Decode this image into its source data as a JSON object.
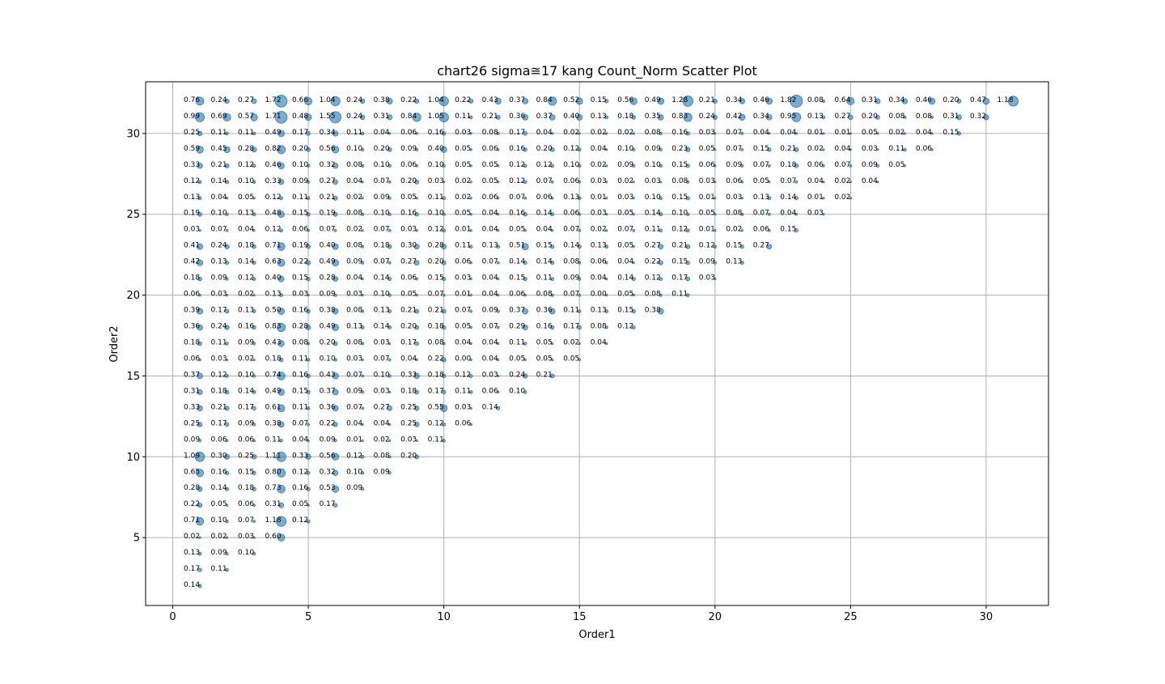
{
  "chart_data": {
    "type": "scatter",
    "title": "chart26 sigma≅17 kang Count_Norm Scatter Plot",
    "xlabel": "Order1",
    "ylabel": "Order2",
    "xlim": [
      -1,
      32.3
    ],
    "ylim": [
      0.8,
      33.2
    ],
    "xticks": [
      0,
      5,
      10,
      15,
      20,
      25,
      30
    ],
    "yticks": [
      5,
      10,
      15,
      20,
      25,
      30
    ],
    "grid": true,
    "color": "#1f77b4",
    "rows": [
      {
        "y": 32,
        "x_start": 1,
        "values": [
          "0.76",
          "0.24",
          "0.27",
          "1.72",
          "0.66",
          "1.04",
          "0.24",
          "0.38",
          "0.22",
          "1.04",
          "0.22",
          "0.43",
          "0.37",
          "0.84",
          "0.52",
          "0.15",
          "0.56",
          "0.49",
          "1.28",
          "0.21",
          "0.34",
          "0.46",
          "1.82",
          "0.08",
          "0.64",
          "0.31",
          "0.34",
          "0.46",
          "0.20",
          "0.47",
          "1.18"
        ]
      },
      {
        "y": 31,
        "x_start": 1,
        "values": [
          "0.99",
          "0.69",
          "0.57",
          "1.71",
          "0.48",
          "1.55",
          "0.24",
          "0.31",
          "0.84",
          "1.05",
          "0.11",
          "0.21",
          "0.36",
          "0.37",
          "0.40",
          "0.13",
          "0.18",
          "0.35",
          "0.83",
          "0.24",
          "0.42",
          "0.34",
          "0.95",
          "0.13",
          "0.27",
          "0.20",
          "0.08",
          "0.08",
          "0.31",
          "0.32"
        ]
      },
      {
        "y": 30,
        "x_start": 1,
        "values": [
          "0.25",
          "0.11",
          "0.11",
          "0.49",
          "0.17",
          "0.34",
          "0.11",
          "0.04",
          "0.06",
          "0.16",
          "0.03",
          "0.08",
          "0.17",
          "0.04",
          "0.02",
          "0.02",
          "0.02",
          "0.08",
          "0.16",
          "0.03",
          "0.07",
          "0.04",
          "0.04",
          "0.01",
          "0.01",
          "0.05",
          "0.02",
          "0.04",
          "0.15"
        ]
      },
      {
        "y": 29,
        "x_start": 1,
        "values": [
          "0.59",
          "0.45",
          "0.28",
          "0.82",
          "0.20",
          "0.56",
          "0.10",
          "0.20",
          "0.09",
          "0.40",
          "0.05",
          "0.06",
          "0.16",
          "0.20",
          "0.12",
          "0.04",
          "0.10",
          "0.09",
          "0.23",
          "0.05",
          "0.07",
          "0.15",
          "0.21",
          "0.02",
          "0.04",
          "0.03",
          "0.11",
          "0.06"
        ]
      },
      {
        "y": 28,
        "x_start": 1,
        "values": [
          "0.33",
          "0.21",
          "0.12",
          "0.46",
          "0.10",
          "0.32",
          "0.08",
          "0.10",
          "0.06",
          "0.10",
          "0.05",
          "0.05",
          "0.12",
          "0.12",
          "0.10",
          "0.02",
          "0.09",
          "0.10",
          "0.15",
          "0.06",
          "0.09",
          "0.07",
          "0.18",
          "0.06",
          "0.07",
          "0.09",
          "0.05"
        ]
      },
      {
        "y": 27,
        "x_start": 1,
        "values": [
          "0.12",
          "0.14",
          "0.10",
          "0.33",
          "0.09",
          "0.27",
          "0.04",
          "0.07",
          "0.20",
          "0.03",
          "0.02",
          "0.05",
          "0.12",
          "0.07",
          "0.06",
          "0.03",
          "0.02",
          "0.03",
          "0.08",
          "0.03",
          "0.06",
          "0.05",
          "0.07",
          "0.04",
          "0.02",
          "0.04"
        ]
      },
      {
        "y": 26,
        "x_start": 1,
        "values": [
          "0.13",
          "0.04",
          "0.05",
          "0.12",
          "0.11",
          "0.21",
          "0.02",
          "0.09",
          "0.05",
          "0.11",
          "0.02",
          "0.06",
          "0.07",
          "0.06",
          "0.13",
          "0.01",
          "0.03",
          "0.10",
          "0.15",
          "0.01",
          "0.03",
          "0.13",
          "0.14",
          "0.01",
          "0.02"
        ]
      },
      {
        "y": 25,
        "x_start": 1,
        "values": [
          "0.19",
          "0.10",
          "0.13",
          "0.48",
          "0.15",
          "0.19",
          "0.08",
          "0.10",
          "0.16",
          "0.10",
          "0.05",
          "0.04",
          "0.16",
          "0.14",
          "0.06",
          "0.03",
          "0.05",
          "0.14",
          "0.10",
          "0.05",
          "0.08",
          "0.07",
          "0.04",
          "0.03"
        ]
      },
      {
        "y": 24,
        "x_start": 1,
        "values": [
          "0.03",
          "0.07",
          "0.04",
          "0.12",
          "0.06",
          "0.07",
          "0.02",
          "0.07",
          "0.03",
          "0.12",
          "0.01",
          "0.04",
          "0.05",
          "0.04",
          "0.07",
          "0.02",
          "0.07",
          "0.11",
          "0.12",
          "0.01",
          "0.02",
          "0.06",
          "0.15"
        ]
      },
      {
        "y": 23,
        "x_start": 1,
        "values": [
          "0.41",
          "0.24",
          "0.18",
          "0.71",
          "0.19",
          "0.40",
          "0.08",
          "0.18",
          "0.30",
          "0.28",
          "0.11",
          "0.13",
          "0.51",
          "0.15",
          "0.14",
          "0.13",
          "0.05",
          "0.27",
          "0.21",
          "0.12",
          "0.15",
          "0.27"
        ]
      },
      {
        "y": 22,
        "x_start": 1,
        "values": [
          "0.42",
          "0.13",
          "0.14",
          "0.63",
          "0.22",
          "0.49",
          "0.09",
          "0.07",
          "0.27",
          "0.20",
          "0.06",
          "0.07",
          "0.14",
          "0.14",
          "0.08",
          "0.06",
          "0.04",
          "0.22",
          "0.15",
          "0.09",
          "0.13"
        ]
      },
      {
        "y": 21,
        "x_start": 1,
        "values": [
          "0.18",
          "0.09",
          "0.12",
          "0.40",
          "0.15",
          "0.28",
          "0.04",
          "0.14",
          "0.06",
          "0.15",
          "0.03",
          "0.04",
          "0.15",
          "0.11",
          "0.09",
          "0.04",
          "0.14",
          "0.12",
          "0.17",
          "0.03"
        ]
      },
      {
        "y": 20,
        "x_start": 1,
        "values": [
          "0.06",
          "0.03",
          "0.02",
          "0.13",
          "0.03",
          "0.09",
          "0.03",
          "0.10",
          "0.05",
          "0.07",
          "0.01",
          "0.04",
          "0.06",
          "0.08",
          "0.07",
          "0.00",
          "0.05",
          "0.08",
          "0.11"
        ]
      },
      {
        "y": 19,
        "x_start": 1,
        "values": [
          "0.39",
          "0.17",
          "0.13",
          "0.50",
          "0.16",
          "0.38",
          "0.08",
          "0.13",
          "0.21",
          "0.21",
          "0.07",
          "0.09",
          "0.37",
          "0.36",
          "0.11",
          "0.13",
          "0.15",
          "0.38"
        ]
      },
      {
        "y": 18,
        "x_start": 1,
        "values": [
          "0.36",
          "0.24",
          "0.16",
          "0.83",
          "0.28",
          "0.49",
          "0.13",
          "0.14",
          "0.20",
          "0.18",
          "0.05",
          "0.07",
          "0.29",
          "0.16",
          "0.17",
          "0.08",
          "0.12"
        ]
      },
      {
        "y": 17,
        "x_start": 1,
        "values": [
          "0.18",
          "0.11",
          "0.09",
          "0.43",
          "0.08",
          "0.20",
          "0.08",
          "0.03",
          "0.17",
          "0.08",
          "0.04",
          "0.04",
          "0.11",
          "0.05",
          "0.02",
          "0.04"
        ]
      },
      {
        "y": 16,
        "x_start": 1,
        "values": [
          "0.06",
          "0.03",
          "0.02",
          "0.18",
          "0.11",
          "0.10",
          "0.03",
          "0.07",
          "0.04",
          "0.22",
          "0.00",
          "0.04",
          "0.05",
          "0.05",
          "0.05"
        ]
      },
      {
        "y": 15,
        "x_start": 1,
        "values": [
          "0.37",
          "0.12",
          "0.10",
          "0.74",
          "0.16",
          "0.43",
          "0.07",
          "0.10",
          "0.33",
          "0.18",
          "0.12",
          "0.03",
          "0.24",
          "0.21"
        ]
      },
      {
        "y": 14,
        "x_start": 1,
        "values": [
          "0.31",
          "0.18",
          "0.14",
          "0.49",
          "0.15",
          "0.37",
          "0.09",
          "0.03",
          "0.18",
          "0.17",
          "0.11",
          "0.06",
          "0.10"
        ]
      },
      {
        "y": 13,
        "x_start": 1,
        "values": [
          "0.33",
          "0.21",
          "0.17",
          "0.61",
          "0.11",
          "0.36",
          "0.07",
          "0.27",
          "0.25",
          "0.55",
          "0.03",
          "0.14"
        ]
      },
      {
        "y": 12,
        "x_start": 1,
        "values": [
          "0.25",
          "0.17",
          "0.09",
          "0.38",
          "0.07",
          "0.22",
          "0.04",
          "0.04",
          "0.25",
          "0.12",
          "0.06"
        ]
      },
      {
        "y": 11,
        "x_start": 1,
        "values": [
          "0.09",
          "0.06",
          "0.06",
          "0.11",
          "0.04",
          "0.09",
          "0.01",
          "0.02",
          "0.03",
          "0.11"
        ]
      },
      {
        "y": 10,
        "x_start": 1,
        "values": [
          "1.09",
          "0.30",
          "0.25",
          "1.11",
          "0.33",
          "0.56",
          "0.12",
          "0.08",
          "0.20"
        ]
      },
      {
        "y": 9,
        "x_start": 1,
        "values": [
          "0.65",
          "0.16",
          "0.15",
          "0.80",
          "0.12",
          "0.32",
          "0.10",
          "0.09"
        ]
      },
      {
        "y": 8,
        "x_start": 1,
        "values": [
          "0.28",
          "0.14",
          "0.18",
          "0.73",
          "0.16",
          "0.53",
          "0.09"
        ]
      },
      {
        "y": 7,
        "x_start": 1,
        "values": [
          "0.22",
          "0.05",
          "0.06",
          "0.31",
          "0.05",
          "0.17"
        ]
      },
      {
        "y": 6,
        "x_start": 1,
        "values": [
          "0.71",
          "0.10",
          "0.07",
          "1.18",
          "0.12"
        ]
      },
      {
        "y": 5,
        "x_start": 1,
        "values": [
          "0.02",
          "0.02",
          "0.03",
          "0.60"
        ]
      },
      {
        "y": 4,
        "x_start": 1,
        "values": [
          "0.13",
          "0.09",
          "0.10"
        ]
      },
      {
        "y": 3,
        "x_start": 1,
        "values": [
          "0.17",
          "0.11"
        ]
      },
      {
        "y": 2,
        "x_start": 1,
        "values": [
          "0.14"
        ]
      }
    ]
  }
}
